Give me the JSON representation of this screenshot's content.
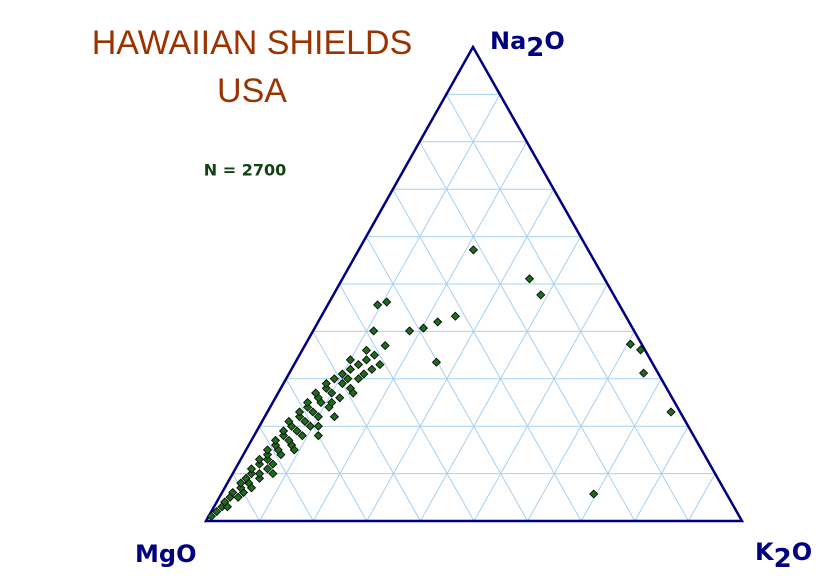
{
  "chart_data": {
    "type": "ternary",
    "title": "HAWAIIAN SHIELDS",
    "subtitle": "USA",
    "annotation": "N = 2700",
    "components": [
      "Na2O",
      "K2O",
      "MgO"
    ],
    "ticks": [
      10,
      20,
      30,
      40,
      50,
      60,
      70,
      80,
      90
    ],
    "grid": true,
    "color": "#1e6b1e",
    "points": [
      [
        1,
        0.5,
        98.5
      ],
      [
        2,
        1,
        97
      ],
      [
        3,
        1.5,
        95.5
      ],
      [
        3,
        2.5,
        94.5
      ],
      [
        4,
        1.5,
        94.5
      ],
      [
        5,
        2,
        93
      ],
      [
        5,
        3.5,
        91.5
      ],
      [
        6,
        2,
        92
      ],
      [
        6,
        4,
        90
      ],
      [
        7,
        3,
        90
      ],
      [
        7,
        5,
        88
      ],
      [
        8,
        2.5,
        89.5
      ],
      [
        8,
        4,
        88
      ],
      [
        9,
        3,
        88
      ],
      [
        9,
        5.5,
        85.5
      ],
      [
        10,
        3.5,
        86.5
      ],
      [
        10,
        5,
        85
      ],
      [
        11,
        3,
        86
      ],
      [
        11,
        6,
        83
      ],
      [
        12,
        4,
        84
      ],
      [
        12,
        6.5,
        81.5
      ],
      [
        13,
        3.5,
        83.5
      ],
      [
        13,
        5,
        82
      ],
      [
        14,
        4.5,
        81.5
      ],
      [
        14,
        7,
        79
      ],
      [
        15,
        4,
        81
      ],
      [
        15,
        6,
        79
      ],
      [
        16,
        5,
        79
      ],
      [
        16,
        8,
        76
      ],
      [
        17,
        4.5,
        78.5
      ],
      [
        17,
        7,
        76
      ],
      [
        18,
        5.5,
        76.5
      ],
      [
        18,
        9,
        73
      ],
      [
        19,
        5,
        76
      ],
      [
        19,
        7.5,
        73.5
      ],
      [
        20,
        6,
        74
      ],
      [
        20,
        9.5,
        70.5
      ],
      [
        21,
        5,
        74
      ],
      [
        21,
        8,
        71
      ],
      [
        22,
        6.5,
        71.5
      ],
      [
        22,
        10,
        68
      ],
      [
        23,
        6,
        71
      ],
      [
        23,
        8.5,
        68.5
      ],
      [
        24,
        7,
        69
      ],
      [
        24,
        11,
        65
      ],
      [
        25,
        6.5,
        68.5
      ],
      [
        25,
        9,
        66
      ],
      [
        26,
        8,
        66
      ],
      [
        26,
        12,
        62
      ],
      [
        27,
        7,
        66
      ],
      [
        27,
        10,
        63
      ],
      [
        28,
        8.5,
        63.5
      ],
      [
        28,
        13,
        59
      ],
      [
        29,
        8,
        63
      ],
      [
        29,
        11,
        60
      ],
      [
        30,
        9,
        61
      ],
      [
        30,
        13.5,
        56.5
      ],
      [
        31,
        10,
        59
      ],
      [
        31,
        14,
        55
      ],
      [
        32,
        11,
        57
      ],
      [
        32,
        15,
        53
      ],
      [
        33,
        12,
        55
      ],
      [
        33,
        16,
        51
      ],
      [
        34,
        13,
        53
      ],
      [
        35,
        14,
        51
      ],
      [
        36,
        12,
        52
      ],
      [
        37,
        15,
        48
      ],
      [
        34,
        10,
        56
      ],
      [
        30,
        11.5,
        58.5
      ],
      [
        25,
        11,
        64
      ],
      [
        20,
        11,
        69
      ],
      [
        15,
        9,
        76
      ],
      [
        10,
        7.5,
        82.5
      ],
      [
        18,
        12,
        70
      ],
      [
        22,
        13,
        65
      ],
      [
        27,
        14,
        59
      ],
      [
        57.2,
        21.4,
        21.4
      ],
      [
        51.1,
        34.9,
        14
      ],
      [
        47.7,
        38.7,
        13.6
      ],
      [
        37.3,
        60.6,
        2.1
      ],
      [
        36.1,
        63.1,
        0.8
      ],
      [
        31.2,
        66.1,
        2.7
      ],
      [
        23,
        75.3,
        1.7
      ],
      [
        5.7,
        69.5,
        24.8
      ],
      [
        33.5,
        26.3,
        40.2
      ],
      [
        43.2,
        25,
        31.8
      ],
      [
        42,
        22.3,
        35.7
      ],
      [
        40.7,
        20.3,
        39
      ],
      [
        40.1,
        18,
        41.9
      ],
      [
        46.2,
        10.7,
        43.1
      ],
      [
        45.6,
        9.3,
        45.1
      ],
      [
        40.1,
        11.3,
        48.6
      ]
    ]
  }
}
